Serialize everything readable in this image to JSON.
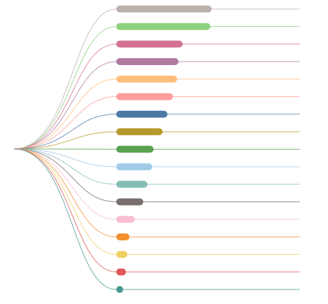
{
  "chart_data": {
    "type": "bar",
    "values": [
      128,
      126,
      86,
      80,
      78,
      72,
      64,
      57,
      44,
      42,
      35,
      29,
      17,
      9,
      6,
      4,
      0
    ],
    "colors": [
      "#bab0ac",
      "#8cd17d",
      "#d37295",
      "#b07aa1",
      "#ffbe7d",
      "#ff9d9a",
      "#4e79a7",
      "#b6992d",
      "#59a14f",
      "#a0cbe8",
      "#86bcb6",
      "#79706e",
      "#fabfd2",
      "#f28e2b",
      "#f1ce63",
      "#e15759",
      "#499894"
    ]
  }
}
